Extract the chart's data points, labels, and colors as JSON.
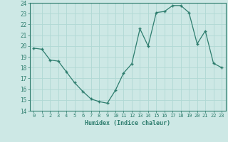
{
  "x": [
    0,
    1,
    2,
    3,
    4,
    5,
    6,
    7,
    8,
    9,
    10,
    11,
    12,
    13,
    14,
    15,
    16,
    17,
    18,
    19,
    20,
    21,
    22,
    23
  ],
  "y": [
    19.8,
    19.7,
    18.7,
    18.6,
    17.6,
    16.6,
    15.8,
    15.1,
    14.85,
    14.7,
    15.9,
    17.5,
    18.35,
    21.6,
    20.0,
    23.1,
    23.2,
    23.75,
    23.75,
    23.1,
    20.2,
    21.4,
    18.4,
    18.0
  ],
  "xlim": [
    -0.5,
    23.5
  ],
  "ylim": [
    14,
    24
  ],
  "yticks": [
    14,
    15,
    16,
    17,
    18,
    19,
    20,
    21,
    22,
    23,
    24
  ],
  "xticks": [
    0,
    1,
    2,
    3,
    4,
    5,
    6,
    7,
    8,
    9,
    10,
    11,
    12,
    13,
    14,
    15,
    16,
    17,
    18,
    19,
    20,
    21,
    22,
    23
  ],
  "xlabel": "Humidex (Indice chaleur)",
  "line_color": "#2e7d6e",
  "marker_color": "#2e7d6e",
  "bg_color": "#cde8e5",
  "grid_color": "#b0d8d4",
  "tick_color": "#2e7d6e",
  "label_color": "#2e7d6e"
}
